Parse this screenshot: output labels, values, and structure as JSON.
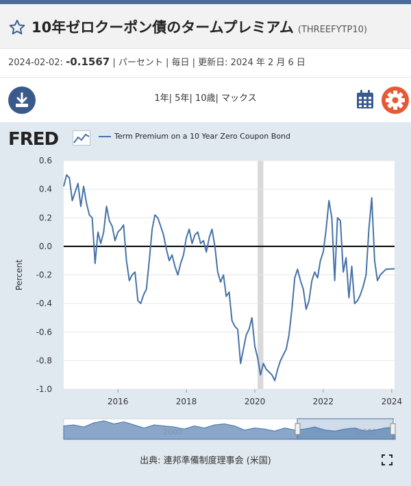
{
  "header": {
    "title": "10年ゼロクーポン債のタームプレミアム",
    "series_id": "(THREEFYTP10)"
  },
  "observation": {
    "date_label": "2024-02-02:",
    "value": "-0.1567",
    "rest": "| パーセント | 毎日 | 更新日: 2024 年 2 月 6 日"
  },
  "toolbar": {
    "ranges": [
      "1年",
      "5年",
      "10歳",
      "マックス"
    ],
    "download_icon": "download-icon",
    "calendar_icon": "calendar-icon",
    "settings_icon": "gear-icon"
  },
  "brand": {
    "logo_text": "FRED",
    "accent": "#4572a7",
    "gear_color": "#e55a35",
    "nav_color": "#3a5a8c"
  },
  "chart_data": {
    "type": "line",
    "title": "",
    "xlabel": "",
    "ylabel": "Percent",
    "ylim": [
      -1.0,
      0.6
    ],
    "xlim": [
      "2014-06-01",
      "2024-02-01"
    ],
    "yticks": [
      "0.6",
      "0.4",
      "0.2",
      "0.0",
      "-0.2",
      "-0.4",
      "-0.6",
      "-0.8",
      "-1.0"
    ],
    "xticks": [
      "2016",
      "2018",
      "2020",
      "2022",
      "2024"
    ],
    "grid": "horizontal",
    "zero_line": true,
    "recession_band": [
      "2020-02",
      "2020-04"
    ],
    "series": [
      {
        "name": "Term Premium on a 10 Year Zero Coupon Bond",
        "color": "#4572a7",
        "points": [
          [
            "2014-06",
            0.42
          ],
          [
            "2014-07",
            0.5
          ],
          [
            "2014-08",
            0.48
          ],
          [
            "2014-09",
            0.32
          ],
          [
            "2014-10",
            0.38
          ],
          [
            "2014-11",
            0.44
          ],
          [
            "2014-12",
            0.28
          ],
          [
            "2015-01",
            0.42
          ],
          [
            "2015-02",
            0.3
          ],
          [
            "2015-03",
            0.22
          ],
          [
            "2015-04",
            0.2
          ],
          [
            "2015-05",
            -0.12
          ],
          [
            "2015-06",
            0.1
          ],
          [
            "2015-07",
            0.02
          ],
          [
            "2015-08",
            0.1
          ],
          [
            "2015-09",
            0.28
          ],
          [
            "2015-10",
            0.18
          ],
          [
            "2015-11",
            0.14
          ],
          [
            "2015-12",
            0.04
          ],
          [
            "2016-01",
            0.1
          ],
          [
            "2016-02",
            0.12
          ],
          [
            "2016-03",
            0.15
          ],
          [
            "2016-04",
            -0.1
          ],
          [
            "2016-05",
            -0.24
          ],
          [
            "2016-06",
            -0.2
          ],
          [
            "2016-07",
            -0.18
          ],
          [
            "2016-08",
            -0.38
          ],
          [
            "2016-09",
            -0.4
          ],
          [
            "2016-10",
            -0.34
          ],
          [
            "2016-11",
            -0.3
          ],
          [
            "2016-12",
            -0.1
          ],
          [
            "2017-01",
            0.12
          ],
          [
            "2017-02",
            0.22
          ],
          [
            "2017-03",
            0.2
          ],
          [
            "2017-04",
            0.14
          ],
          [
            "2017-05",
            0.08
          ],
          [
            "2017-06",
            -0.02
          ],
          [
            "2017-07",
            -0.1
          ],
          [
            "2017-08",
            -0.06
          ],
          [
            "2017-09",
            -0.14
          ],
          [
            "2017-10",
            -0.2
          ],
          [
            "2017-11",
            -0.12
          ],
          [
            "2017-12",
            -0.06
          ],
          [
            "2018-01",
            0.06
          ],
          [
            "2018-02",
            0.12
          ],
          [
            "2018-03",
            0.02
          ],
          [
            "2018-04",
            0.08
          ],
          [
            "2018-05",
            0.1
          ],
          [
            "2018-06",
            0.02
          ],
          [
            "2018-07",
            0.04
          ],
          [
            "2018-08",
            -0.04
          ],
          [
            "2018-09",
            0.06
          ],
          [
            "2018-10",
            0.12
          ],
          [
            "2018-11",
            0.0
          ],
          [
            "2018-12",
            -0.18
          ],
          [
            "2019-01",
            -0.25
          ],
          [
            "2019-02",
            -0.2
          ],
          [
            "2019-03",
            -0.35
          ],
          [
            "2019-04",
            -0.32
          ],
          [
            "2019-05",
            -0.52
          ],
          [
            "2019-06",
            -0.56
          ],
          [
            "2019-07",
            -0.58
          ],
          [
            "2019-08",
            -0.82
          ],
          [
            "2019-09",
            -0.72
          ],
          [
            "2019-10",
            -0.62
          ],
          [
            "2019-11",
            -0.58
          ],
          [
            "2019-12",
            -0.5
          ],
          [
            "2020-01",
            -0.7
          ],
          [
            "2020-02",
            -0.78
          ],
          [
            "2020-03",
            -0.9
          ],
          [
            "2020-04",
            -0.82
          ],
          [
            "2020-05",
            -0.86
          ],
          [
            "2020-06",
            -0.88
          ],
          [
            "2020-07",
            -0.9
          ],
          [
            "2020-08",
            -0.94
          ],
          [
            "2020-09",
            -0.86
          ],
          [
            "2020-10",
            -0.8
          ],
          [
            "2020-11",
            -0.76
          ],
          [
            "2020-12",
            -0.72
          ],
          [
            "2021-01",
            -0.62
          ],
          [
            "2021-02",
            -0.44
          ],
          [
            "2021-03",
            -0.22
          ],
          [
            "2021-04",
            -0.16
          ],
          [
            "2021-05",
            -0.24
          ],
          [
            "2021-06",
            -0.3
          ],
          [
            "2021-07",
            -0.44
          ],
          [
            "2021-08",
            -0.38
          ],
          [
            "2021-09",
            -0.24
          ],
          [
            "2021-10",
            -0.18
          ],
          [
            "2021-11",
            -0.22
          ],
          [
            "2021-12",
            -0.1
          ],
          [
            "2022-01",
            -0.04
          ],
          [
            "2022-02",
            0.12
          ],
          [
            "2022-03",
            0.32
          ],
          [
            "2022-04",
            0.2
          ],
          [
            "2022-05",
            -0.24
          ],
          [
            "2022-06",
            0.2
          ],
          [
            "2022-07",
            0.18
          ],
          [
            "2022-08",
            -0.18
          ],
          [
            "2022-09",
            -0.08
          ],
          [
            "2022-10",
            -0.36
          ],
          [
            "2022-11",
            -0.14
          ],
          [
            "2022-12",
            -0.4
          ],
          [
            "2023-01",
            -0.38
          ],
          [
            "2023-02",
            -0.34
          ],
          [
            "2023-03",
            -0.28
          ],
          [
            "2023-04",
            -0.2
          ],
          [
            "2023-05",
            0.12
          ],
          [
            "2023-06",
            0.34
          ],
          [
            "2023-07",
            -0.1
          ],
          [
            "2023-08",
            -0.24
          ],
          [
            "2023-09",
            -0.2
          ],
          [
            "2023-10",
            -0.18
          ],
          [
            "2023-11",
            -0.16
          ],
          [
            "2024-02",
            -0.1567
          ]
        ]
      }
    ],
    "navigator": {
      "labels": [
        "2000",
        "2020"
      ]
    }
  },
  "footer": {
    "source": "出典: 連邦準備制度理事会 (米国)",
    "expand_icon": "expand-icon"
  }
}
